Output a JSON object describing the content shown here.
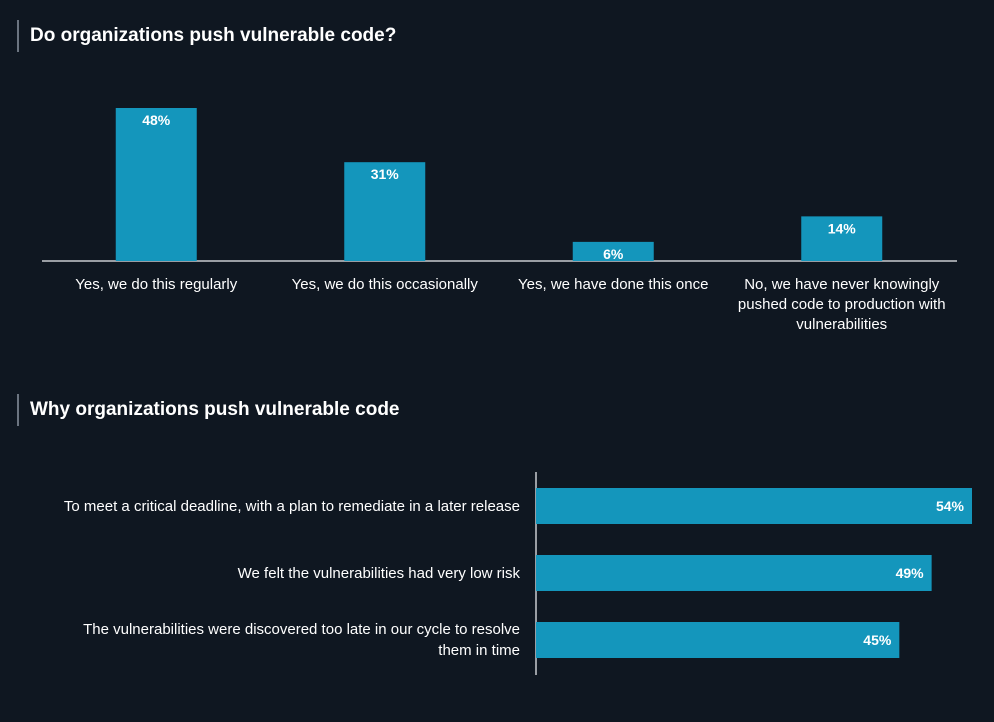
{
  "chart_data": [
    {
      "type": "bar",
      "title": "Do organizations push vulnerable code?",
      "categories": [
        "Yes, we do this regularly",
        "Yes, we do this occasionally",
        "Yes, we have done this once",
        "No, we have never knowingly pushed code to production with vulnerabilities"
      ],
      "category_lines": [
        [
          "Yes, we do this regularly"
        ],
        [
          "Yes, we do this occasionally"
        ],
        [
          "Yes, we have done this once"
        ],
        [
          "No, we have never knowingly",
          "pushed code to production with",
          "vulnerabilities"
        ]
      ],
      "values": [
        48,
        31,
        6,
        14
      ],
      "value_labels": [
        "48%",
        "31%",
        "6%",
        "14%"
      ],
      "ylim": [
        0,
        48
      ],
      "color": "#1496bc",
      "grid": false
    },
    {
      "type": "bar",
      "orientation": "horizontal",
      "title": "Why organizations push vulnerable code",
      "categories": [
        "To meet a critical deadline, with a plan to remediate in a later release",
        "We felt the vulnerabilities had very low risk",
        "The vulnerabilities were discovered too late in our cycle to resolve them in time"
      ],
      "category_lines": [
        [
          "To meet a critical deadline, with a plan to remediate in a later release"
        ],
        [
          "We felt the vulnerabilities had very low risk"
        ],
        [
          "The vulnerabilities were discovered too late in our cycle to resolve",
          "them in time"
        ]
      ],
      "values": [
        54,
        49,
        45
      ],
      "value_labels": [
        "54%",
        "49%",
        "45%"
      ],
      "xlim": [
        0,
        54
      ],
      "color": "#1496bc",
      "grid": false
    }
  ],
  "colors": {
    "background": "#0f1721",
    "bar": "#1496bc",
    "axis": "#c8ccd0",
    "title_rule": "#6b7480"
  }
}
